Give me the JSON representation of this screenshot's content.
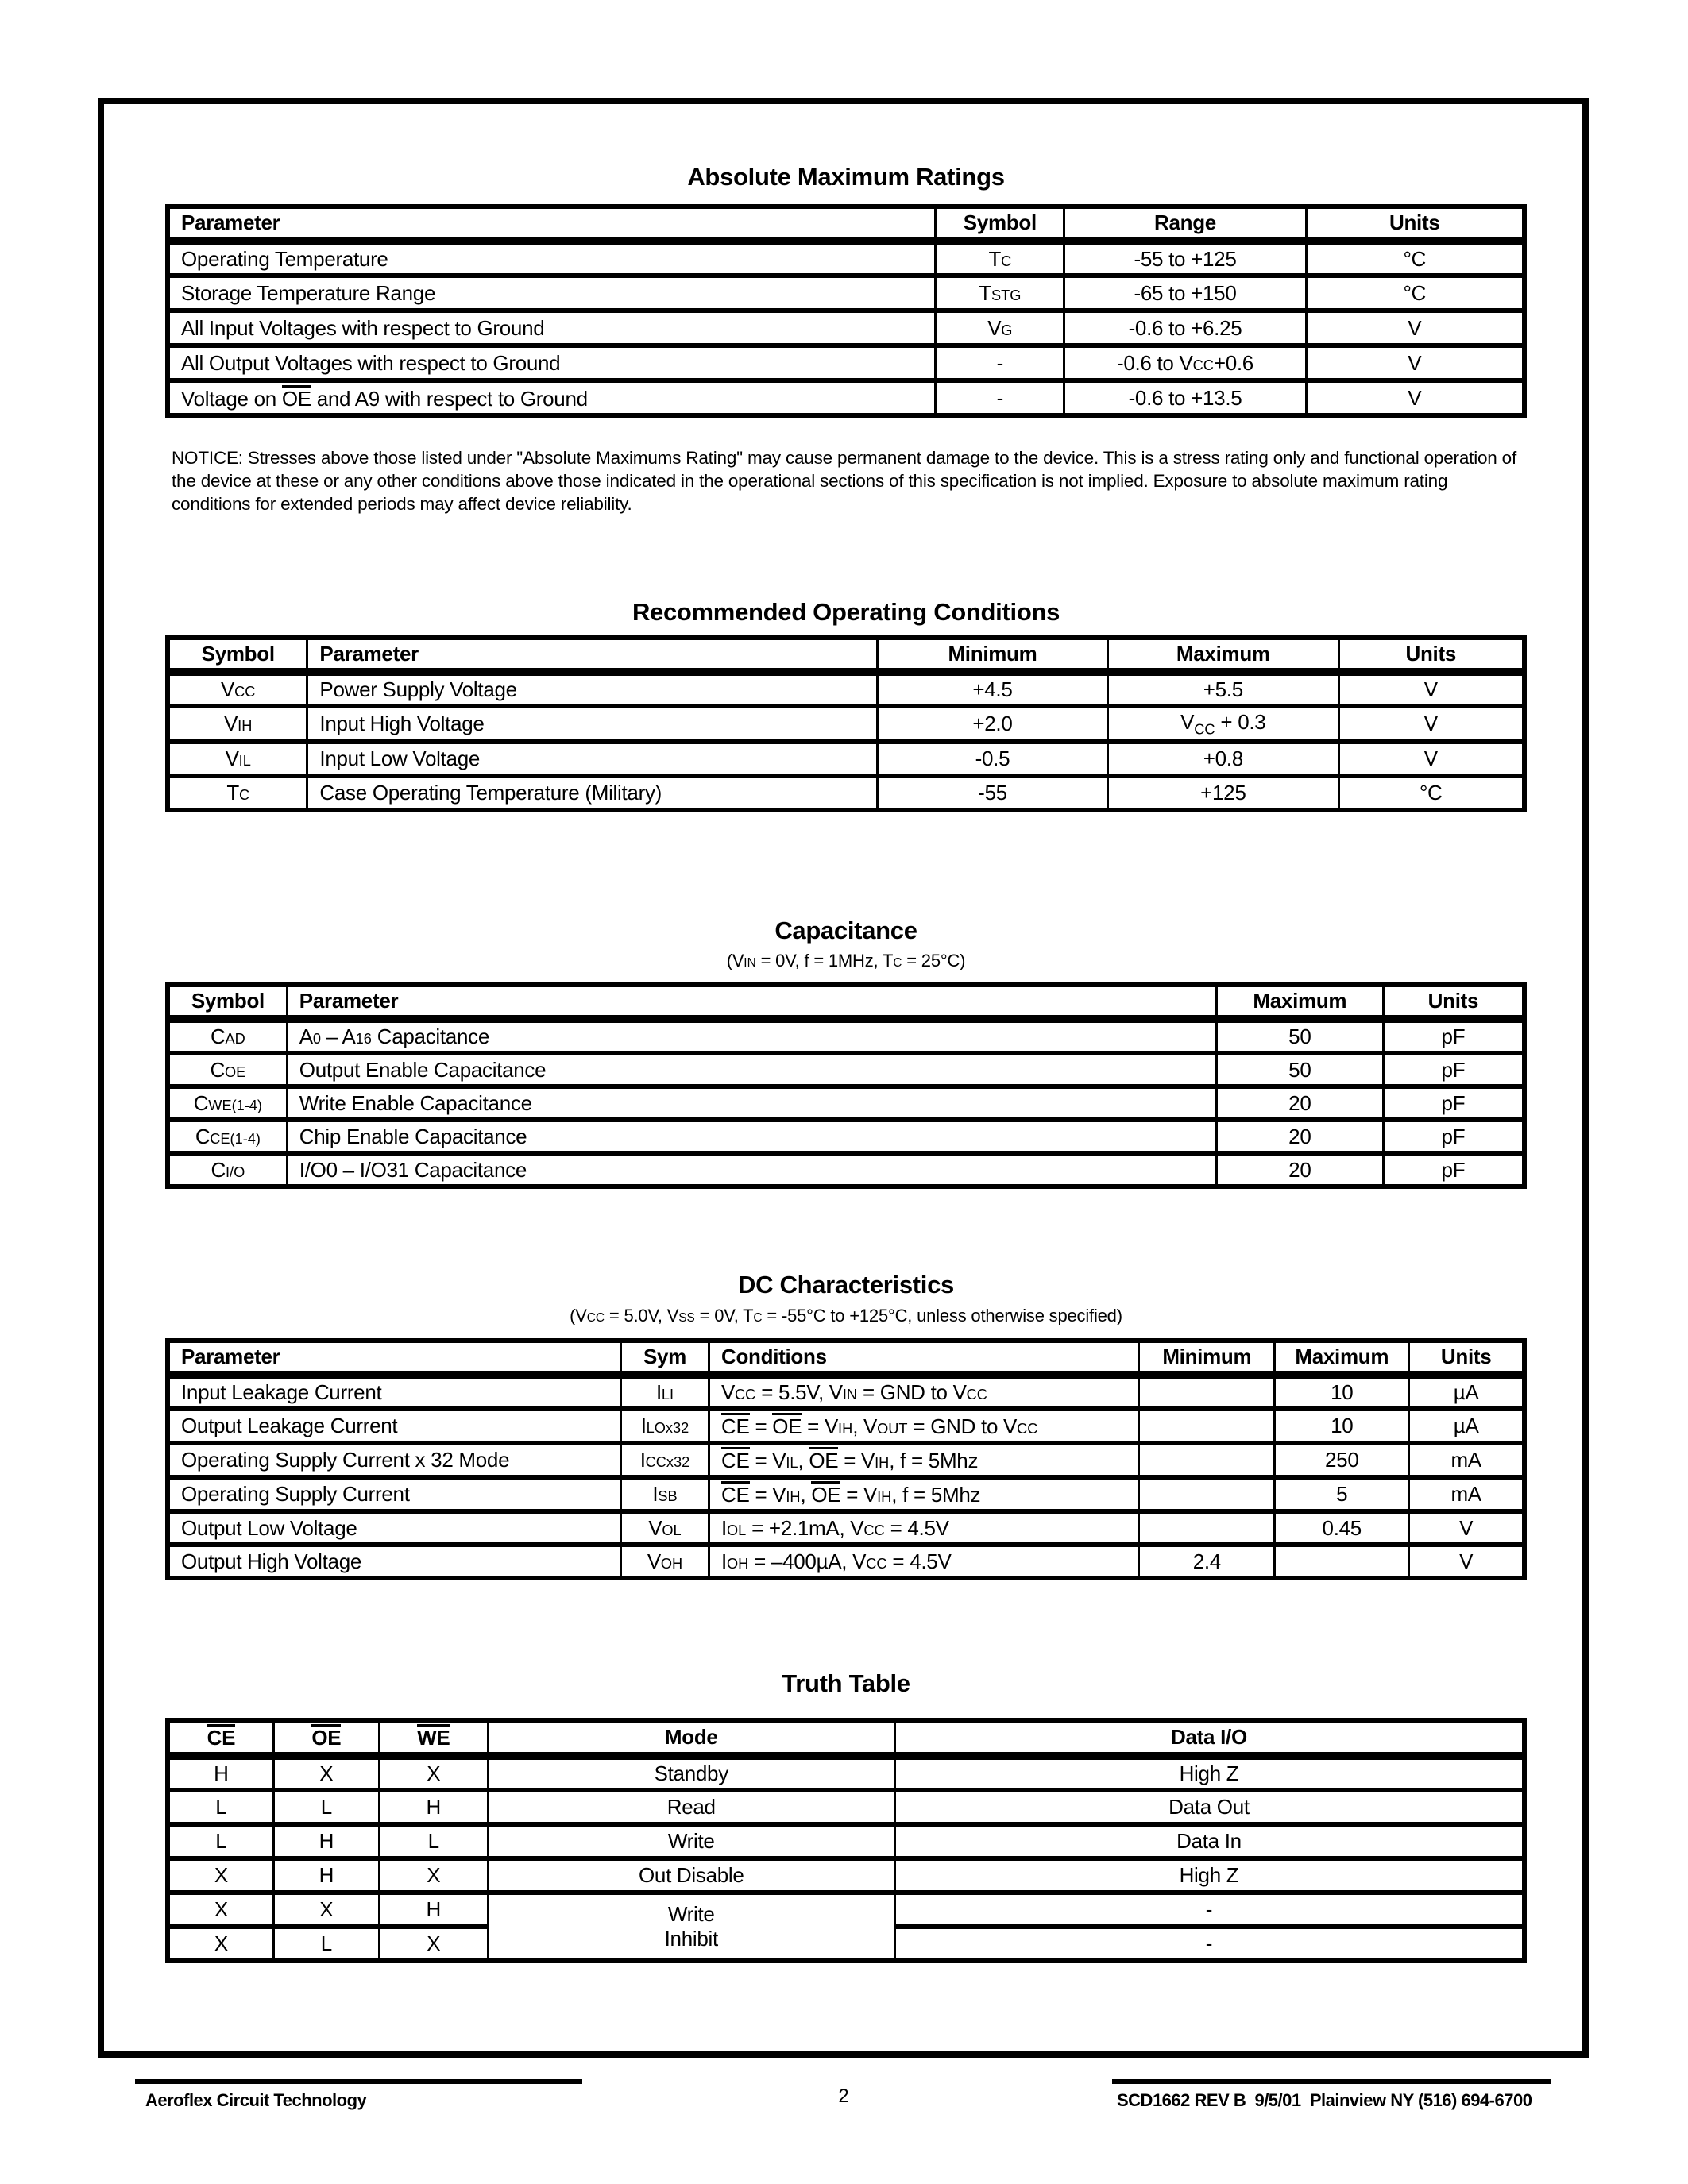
{
  "sections": {
    "abs_max": {
      "title": "Absolute Maximum Ratings"
    },
    "rec_op": {
      "title": "Recommended Operating Conditions"
    },
    "cap": {
      "title": "Capacitance",
      "subtitle": "(V{IN} = 0V, f = 1MHz, T{C} = 25°C)"
    },
    "dc": {
      "title": "DC Characteristics",
      "subtitle": "(V{CC} = 5.0V, V{SS} = 0V, T{C} = -55°C to +125°C, unless otherwise specified)"
    },
    "truth": {
      "title": "Truth Table"
    }
  },
  "notice": "NOTICE: Stresses above those listed under \"Absolute Maximums Rating\" may cause permanent damage to the device. This is a stress rating only and functional operation of the device at these or any other conditions above those indicated in the operational sections of this specification is not implied. Exposure to absolute maximum rating conditions for extended periods may affect device reliability.",
  "tables": {
    "abs_max": {
      "widths": [
        56.6,
        9.5,
        17.8,
        16.1
      ],
      "aligns": [
        "left",
        "center",
        "center",
        "center"
      ],
      "headers": [
        "Parameter",
        "Symbol",
        "Range",
        "Units"
      ],
      "rows": [
        [
          "Operating Temperature",
          "T{C}",
          "-55 to +125",
          "°C"
        ],
        [
          "Storage Temperature Range",
          "T{STG}",
          "-65 to +150",
          "°C"
        ],
        [
          "All Input Voltages with respect to Ground",
          "V{G}",
          "-0.6 to +6.25",
          "V"
        ],
        [
          "All Output Voltages with respect to Ground",
          "-",
          "-0.6 to V{CC}+0.6",
          "V"
        ],
        [
          "Voltage on [OE] and A9 with respect to Ground",
          "-",
          "-0.6 to +13.5",
          "V"
        ]
      ]
    },
    "rec_op": {
      "widths": [
        10.3,
        42.0,
        17.0,
        17.0,
        13.7
      ],
      "aligns": [
        "center",
        "left",
        "center",
        "center",
        "center"
      ],
      "headers": [
        "Symbol",
        "Parameter",
        "Minimum",
        "Maximum",
        "Units"
      ],
      "rows": [
        [
          "V{CC}",
          "Power Supply Voltage",
          "+4.5",
          "+5.5",
          "V"
        ],
        [
          "V{IH}",
          "Input High Voltage",
          "+2.0",
          "V~CC~ + 0.3",
          "V"
        ],
        [
          "V{IL}",
          "Input Low Voltage",
          "-0.5",
          "+0.8",
          "V"
        ],
        [
          "T{C}",
          "Case Operating Temperature (Military)",
          "-55",
          "+125",
          "°C"
        ]
      ]
    },
    "cap": {
      "widths": [
        8.8,
        68.5,
        12.3,
        10.4
      ],
      "aligns": [
        "center",
        "left",
        "center",
        "center"
      ],
      "headers": [
        "Symbol",
        "Parameter",
        "Maximum",
        "Units"
      ],
      "rows": [
        [
          "C{AD}",
          "A{0} – A{16} Capacitance",
          "50",
          "pF"
        ],
        [
          "C{OE}",
          "Output Enable Capacitance",
          "50",
          "pF"
        ],
        [
          "C{WE(1-4)}",
          "Write Enable Capacitance",
          "20",
          "pF"
        ],
        [
          "C{CE(1-4)}",
          "Chip Enable Capacitance",
          "20",
          "pF"
        ],
        [
          "C{I/O}",
          "I/O0 – I/O31 Capacitance",
          "20",
          "pF"
        ]
      ]
    },
    "dc": {
      "widths": [
        33.4,
        6.5,
        31.7,
        10.0,
        9.9,
        8.5
      ],
      "aligns": [
        "left",
        "center",
        "left",
        "center",
        "center",
        "center"
      ],
      "headers": [
        "Parameter",
        "Sym",
        "Conditions",
        "Minimum",
        "Maximum",
        "Units"
      ],
      "rows": [
        [
          "Input Leakage Current",
          "I{LI}",
          "V{CC} = 5.5V, V{IN} = GND to V{CC}",
          "",
          "10",
          "µA"
        ],
        [
          "Output Leakage Current",
          "I{LOx32}",
          "[CE] = [OE] = V{IH}, V{OUT} = GND to V{CC}",
          "",
          "10",
          "µA"
        ],
        [
          "Operating Supply Current x 32 Mode",
          "I{CCx32}",
          "[CE] = V{IL}, [OE] = V{IH}, f = 5Mhz",
          "",
          "250",
          "mA"
        ],
        [
          "Operating Supply Current",
          "I{SB}",
          "[CE] = V{IH}, [OE] = V{IH}, f = 5Mhz",
          "",
          "5",
          "mA"
        ],
        [
          "Output Low Voltage",
          "V{OL}",
          "I{OL} = +2.1mA, V{CC} = 4.5V",
          "",
          "0.45",
          "V"
        ],
        [
          "Output High Voltage",
          "V{OH}",
          "I{OH} = –400µA, V{CC} = 4.5V",
          "2.4",
          "",
          "V"
        ]
      ]
    },
    "truth": {
      "widths": [
        7.8,
        7.8,
        8.0,
        30.0,
        46.4
      ],
      "aligns": [
        "center",
        "center",
        "center",
        "center",
        "center"
      ],
      "headers": [
        "[CE]",
        "[OE]",
        "[WE]",
        "Mode",
        "Data I/O"
      ],
      "rows": [
        [
          "H",
          "X",
          "X",
          "Standby",
          "High Z"
        ],
        [
          "L",
          "L",
          "H",
          "Read",
          "Data Out"
        ],
        [
          "L",
          "H",
          "L",
          "Write",
          "Data In"
        ],
        [
          "X",
          "H",
          "X",
          "Out Disable",
          "High Z"
        ],
        [
          "X",
          "X",
          "H",
          {
            "lines": [
              "Write",
              "Inhibit"
            ],
            "rowspan": 2
          },
          "-"
        ],
        [
          "X",
          "L",
          "X",
          null,
          "-"
        ]
      ]
    }
  },
  "footer": {
    "left": "Aeroflex Circuit Technology",
    "page": "2",
    "right": "SCD1662 REV B  9/5/01  Plainview NY (516) 694-6700"
  }
}
